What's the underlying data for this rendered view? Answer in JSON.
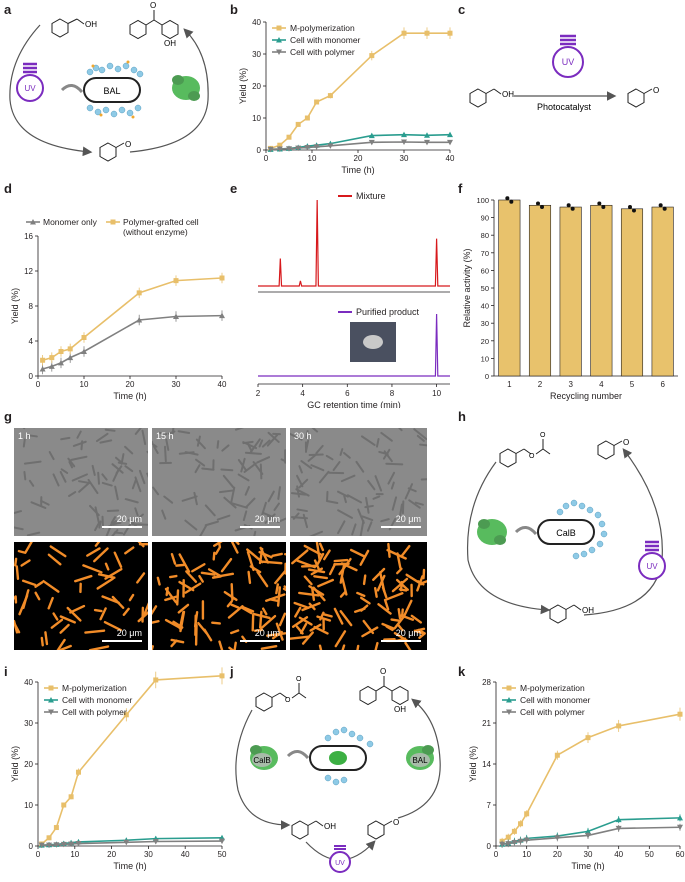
{
  "panel_labels": [
    "a",
    "b",
    "c",
    "d",
    "e",
    "f",
    "g",
    "h",
    "i",
    "j",
    "k"
  ],
  "schemes": {
    "a": {
      "enzyme": "BAL",
      "light": "UV"
    },
    "c": {
      "light": "UV",
      "arrow_label": "Photocatalyst"
    },
    "h": {
      "enzyme": "CalB",
      "light": "UV"
    },
    "j": {
      "enzyme_left": "CalB",
      "enzyme_right": "BAL",
      "light": "UV"
    }
  },
  "micrographs": {
    "times": [
      "1 h",
      "15 h",
      "30 h"
    ],
    "scale_bar": "20 μm"
  },
  "colors": {
    "yellow": "#e8bf6a",
    "teal": "#2a9d8f",
    "gray": "#808080",
    "red": "#d7191c",
    "purple": "#7b2cbf",
    "bar": "#e8c26c",
    "orange": "#f28c28",
    "enzyme_green": "#3cb043",
    "polymer_blue": "#8ecae6"
  },
  "chart_data": [
    {
      "panel": "b",
      "type": "line",
      "xlabel": "Time (h)",
      "ylabel": "Yield (%)",
      "xlim": [
        0,
        40
      ],
      "ylim": [
        0,
        40
      ],
      "xticks": [
        0,
        10,
        20,
        30,
        40
      ],
      "yticks": [
        0,
        10,
        20,
        30,
        40
      ],
      "legend": "top-left",
      "series": [
        {
          "name": "M-polymerization",
          "color": "#e8bf6a",
          "x": [
            1,
            3,
            5,
            7,
            9,
            11,
            14,
            23,
            30,
            35,
            40
          ],
          "y": [
            0.5,
            1.5,
            4,
            8,
            10,
            15,
            17,
            29.5,
            36.5,
            36.5,
            36.5
          ]
        },
        {
          "name": "Cell with monomer",
          "color": "#2a9d8f",
          "x": [
            1,
            3,
            5,
            7,
            9,
            11,
            14,
            23,
            30,
            35,
            40
          ],
          "y": [
            0.2,
            0.3,
            0.5,
            0.8,
            1.2,
            1.5,
            2,
            4.5,
            4.8,
            4.6,
            4.8
          ]
        },
        {
          "name": "Cell with polymer",
          "color": "#808080",
          "x": [
            1,
            3,
            5,
            7,
            9,
            11,
            14,
            23,
            30,
            35,
            40
          ],
          "y": [
            0.2,
            0.3,
            0.4,
            0.6,
            0.8,
            1,
            1.3,
            2.4,
            2.5,
            2.4,
            2.4
          ]
        }
      ]
    },
    {
      "panel": "d",
      "type": "line",
      "xlabel": "Time (h)",
      "ylabel": "Yield (%)",
      "xlim": [
        0,
        40
      ],
      "ylim": [
        0,
        16
      ],
      "xticks": [
        0,
        10,
        20,
        30,
        40
      ],
      "yticks": [
        0,
        4,
        8,
        12,
        16
      ],
      "legend": "top",
      "series": [
        {
          "name": "Monomer only",
          "color": "#808080",
          "x": [
            1,
            3,
            5,
            7,
            10,
            22,
            30,
            40
          ],
          "y": [
            0.8,
            1.1,
            1.5,
            2.1,
            2.8,
            6.4,
            6.8,
            6.9
          ]
        },
        {
          "name": "Polymer-grafted cell",
          "name2": "(without enzyme)",
          "color": "#e8bf6a",
          "x": [
            1,
            3,
            5,
            7,
            10,
            22,
            30,
            40
          ],
          "y": [
            1.8,
            2.1,
            2.8,
            3.1,
            4.4,
            9.5,
            10.9,
            11.2
          ]
        }
      ]
    },
    {
      "panel": "e",
      "type": "line",
      "xlabel": "GC retention time (min)",
      "xlim": [
        2,
        10.6
      ],
      "xticks": [
        2,
        4,
        6,
        8,
        10
      ],
      "legend": "top",
      "series": [
        {
          "name": "Mixture",
          "color": "#d7191c",
          "peaks": [
            {
              "x": 3.0,
              "h": 0.32
            },
            {
              "x": 3.9,
              "h": 0.06
            },
            {
              "x": 4.65,
              "h": 1.0
            },
            {
              "x": 10.0,
              "h": 0.55
            }
          ]
        },
        {
          "name": "Purified product",
          "color": "#7b2cbf",
          "peaks": [
            {
              "x": 10.0,
              "h": 1.0
            }
          ]
        }
      ]
    },
    {
      "panel": "f",
      "type": "bar",
      "xlabel": "Recycling number",
      "ylabel": "Relative activity (%)",
      "categories": [
        "1",
        "2",
        "3",
        "4",
        "5",
        "6"
      ],
      "values": [
        100,
        97,
        96,
        97,
        95,
        96
      ],
      "ylim": [
        0,
        100
      ],
      "yticks": [
        0,
        10,
        20,
        30,
        40,
        50,
        60,
        70,
        80,
        90,
        100
      ]
    },
    {
      "panel": "i",
      "type": "line",
      "xlabel": "Time (h)",
      "ylabel": "Yield (%)",
      "xlim": [
        0,
        50
      ],
      "ylim": [
        0,
        40
      ],
      "xticks": [
        0,
        10,
        20,
        30,
        40,
        50
      ],
      "yticks": [
        0,
        10,
        20,
        30,
        40
      ],
      "legend": "top-left",
      "series": [
        {
          "name": "M-polymerization",
          "color": "#e8bf6a",
          "x": [
            1,
            3,
            5,
            7,
            9,
            11,
            24,
            32,
            50
          ],
          "y": [
            0.5,
            2,
            4.5,
            10,
            12,
            18,
            32,
            40.5,
            41.5
          ]
        },
        {
          "name": "Cell with monomer",
          "color": "#2a9d8f",
          "x": [
            1,
            3,
            5,
            7,
            9,
            11,
            24,
            32,
            50
          ],
          "y": [
            0.2,
            0.3,
            0.4,
            0.6,
            0.8,
            1,
            1.4,
            1.8,
            2
          ]
        },
        {
          "name": "Cell with polymer",
          "color": "#808080",
          "x": [
            1,
            3,
            5,
            7,
            9,
            11,
            24,
            32,
            50
          ],
          "y": [
            0.2,
            0.2,
            0.3,
            0.4,
            0.5,
            0.6,
            0.9,
            1.1,
            1.2
          ]
        }
      ]
    },
    {
      "panel": "k",
      "type": "line",
      "xlabel": "Time (h)",
      "ylabel": "Yield (%)",
      "xlim": [
        0,
        60
      ],
      "ylim": [
        0,
        28
      ],
      "xticks": [
        0,
        10,
        20,
        30,
        40,
        50,
        60
      ],
      "yticks": [
        0,
        7,
        14,
        21,
        28
      ],
      "legend": "top-left",
      "series": [
        {
          "name": "M-polymerization",
          "color": "#e8bf6a",
          "x": [
            2,
            4,
            6,
            8,
            10,
            20,
            30,
            40,
            60
          ],
          "y": [
            0.8,
            1.5,
            2.5,
            3.8,
            5.5,
            15.5,
            18.5,
            20.5,
            22.5
          ]
        },
        {
          "name": "Cell with monomer",
          "color": "#2a9d8f",
          "x": [
            2,
            4,
            6,
            8,
            10,
            20,
            30,
            40,
            60
          ],
          "y": [
            0.3,
            0.5,
            0.8,
            1,
            1.3,
            1.7,
            2.5,
            4.5,
            4.8
          ]
        },
        {
          "name": "Cell with polymer",
          "color": "#808080",
          "x": [
            2,
            4,
            6,
            8,
            10,
            20,
            30,
            40,
            60
          ],
          "y": [
            0.3,
            0.4,
            0.6,
            0.8,
            1,
            1.4,
            1.8,
            3,
            3.2
          ]
        }
      ]
    }
  ]
}
